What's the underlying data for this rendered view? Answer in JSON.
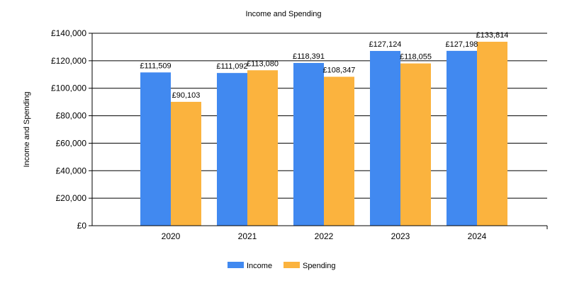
{
  "chart_data": {
    "type": "bar",
    "title": "Income and Spending",
    "xlabel": "",
    "ylabel": "Income and Spending",
    "categories": [
      "2020",
      "2021",
      "2022",
      "2023",
      "2024"
    ],
    "series": [
      {
        "name": "Income",
        "color": "#4189F0",
        "values": [
          111509,
          111092,
          118391,
          127124,
          127198
        ],
        "labels": [
          "£111,509",
          "£111,092",
          "£118,391",
          "£127,124",
          "£127,198"
        ]
      },
      {
        "name": "Spending",
        "color": "#FBB33E",
        "values": [
          90103,
          113080,
          108347,
          118055,
          133814
        ],
        "labels": [
          "£90,103",
          "£113,080",
          "£108,347",
          "£118,055",
          "£133,814"
        ]
      }
    ],
    "ylim": [
      0,
      140000
    ],
    "yticks": [
      0,
      20000,
      40000,
      60000,
      80000,
      100000,
      120000,
      140000
    ],
    "ytick_labels": [
      "£0",
      "£20,000",
      "£40,000",
      "£60,000",
      "£80,000",
      "£100,000",
      "£120,000",
      "£140,000"
    ],
    "grid": true,
    "legend_position": "bottom"
  }
}
